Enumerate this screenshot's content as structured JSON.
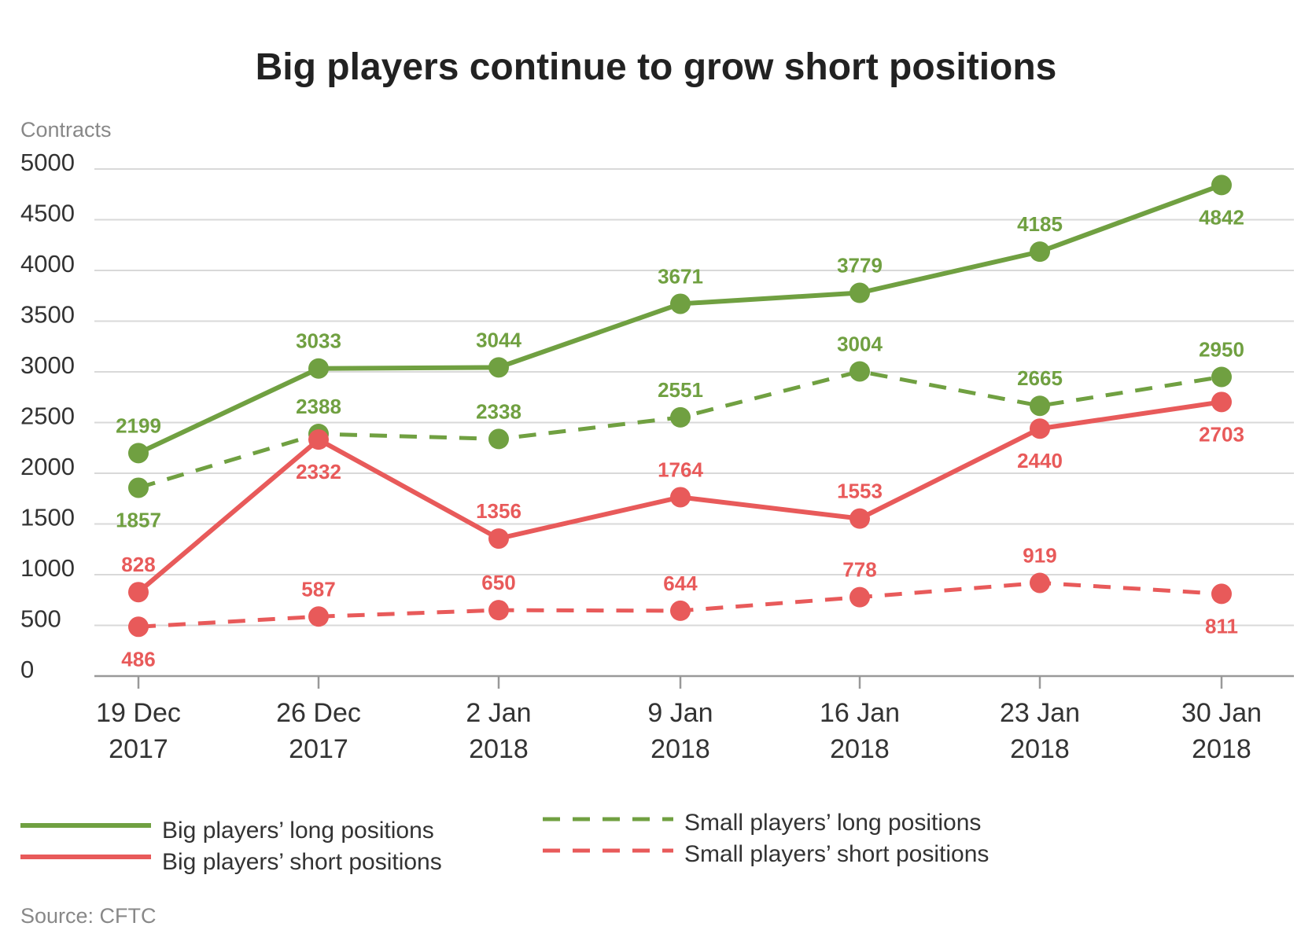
{
  "chart_data": {
    "type": "line",
    "title": "Big players continue to grow short positions",
    "ylabel": "Contracts",
    "xlabel": "",
    "ylim": [
      0,
      5000
    ],
    "yticks": [
      0,
      500,
      1000,
      1500,
      2000,
      2500,
      3000,
      3500,
      4000,
      4500,
      5000
    ],
    "grid": "horizontal",
    "legend_position": "bottom",
    "categories": [
      [
        "19 Dec",
        "2017"
      ],
      [
        "26 Dec",
        "2017"
      ],
      [
        "2 Jan",
        "2018"
      ],
      [
        "9 Jan",
        "2018"
      ],
      [
        "16 Jan",
        "2018"
      ],
      [
        "23 Jan",
        "2018"
      ],
      [
        "30 Jan",
        "2018"
      ]
    ],
    "series": [
      {
        "name": "Big players' long positions",
        "color": "#70a041",
        "dash": "solid",
        "values": [
          2199,
          3033,
          3044,
          3671,
          3779,
          4185,
          4842
        ],
        "label_pos": [
          "above",
          "above",
          "above",
          "above",
          "above",
          "above",
          "below"
        ]
      },
      {
        "name": "Small players' long positions",
        "color": "#70a041",
        "dash": "dashed",
        "values": [
          1857,
          2388,
          2338,
          2551,
          3004,
          2665,
          2950
        ],
        "label_pos": [
          "below",
          "above",
          "above",
          "above",
          "above",
          "above",
          "above"
        ]
      },
      {
        "name": "Big players' short positions",
        "color": "#e85a5a",
        "dash": "solid",
        "values": [
          828,
          2332,
          1356,
          1764,
          1553,
          2440,
          2703
        ],
        "label_pos": [
          "above",
          "below",
          "above",
          "above",
          "above",
          "below",
          "below"
        ]
      },
      {
        "name": "Small players' short positions",
        "color": "#e85a5a",
        "dash": "dashed",
        "values": [
          486,
          587,
          650,
          644,
          778,
          919,
          811
        ],
        "label_pos": [
          "below",
          "above",
          "above",
          "above",
          "above",
          "above",
          "below"
        ]
      }
    ]
  },
  "legend": [
    {
      "label": "Big players’ long positions",
      "color": "#70a041",
      "dash": "solid"
    },
    {
      "label": "Big players’ short positions",
      "color": "#e85a5a",
      "dash": "solid"
    },
    {
      "label": "Small players’ long positions",
      "color": "#70a041",
      "dash": "dashed"
    },
    {
      "label": "Small players’ short positions",
      "color": "#e85a5a",
      "dash": "dashed"
    }
  ],
  "source": "Source: CFTC",
  "colors": {
    "axis": "#999999",
    "grid": "#d9d9d9",
    "tick_text": "#333333",
    "muted_text": "#888888"
  }
}
